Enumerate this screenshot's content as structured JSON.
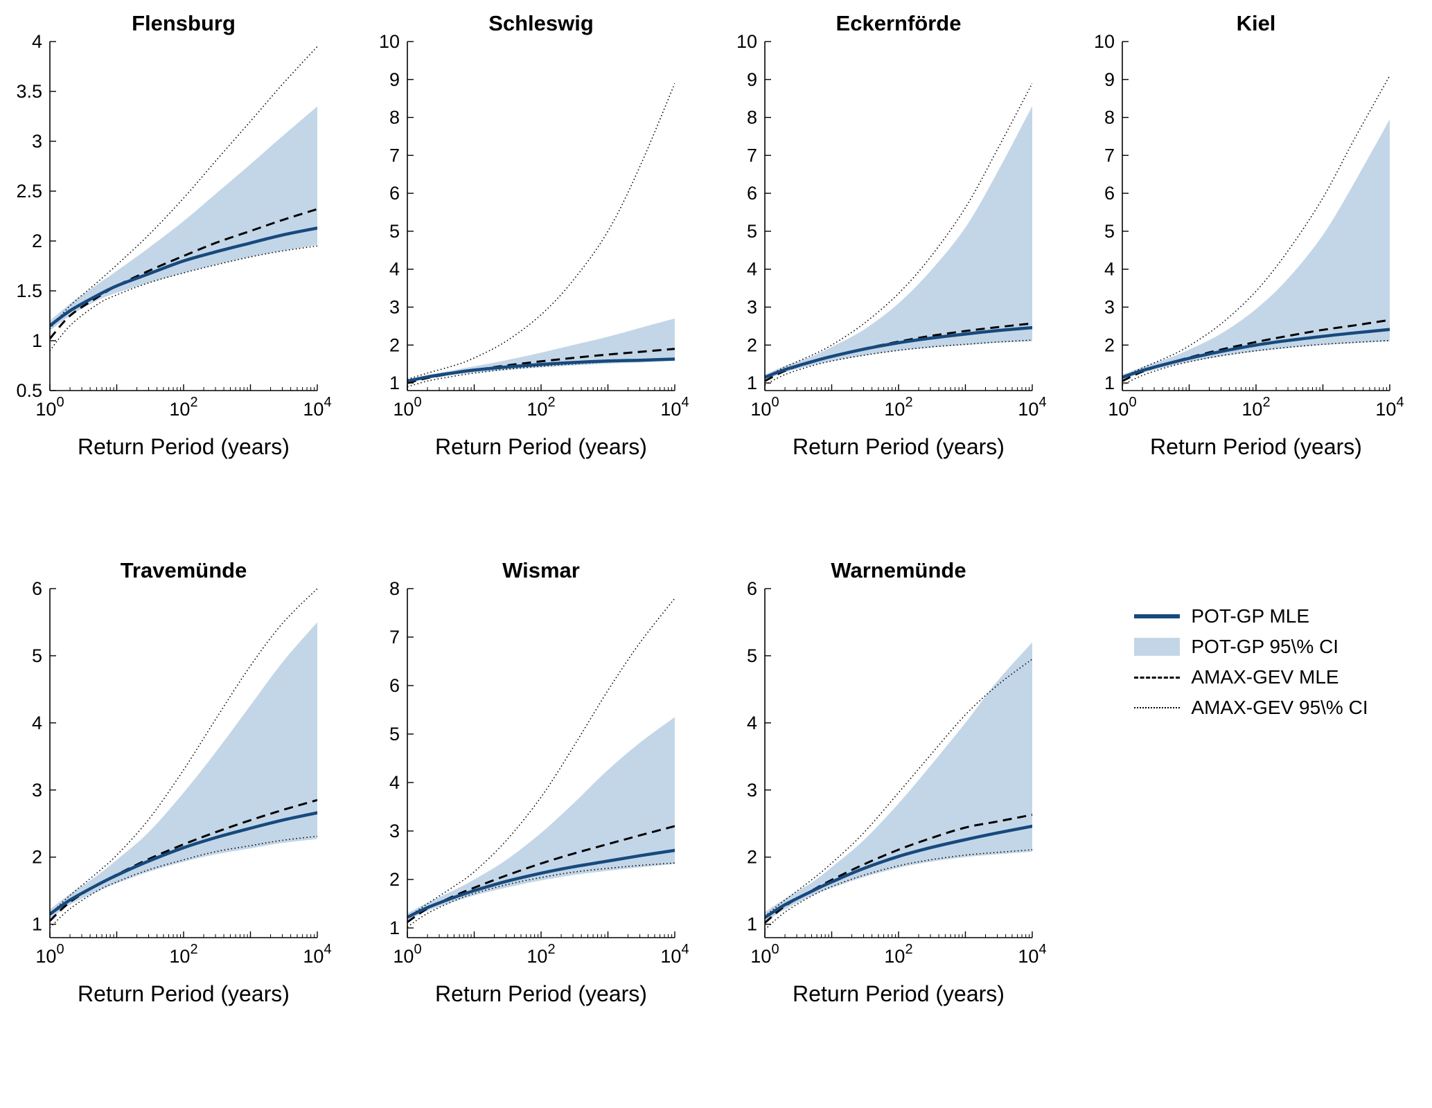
{
  "figure": {
    "xlabel": "Return Period (years)",
    "x_tick_labels": [
      "10^0",
      "10^2",
      "10^4"
    ],
    "colors": {
      "pot_line": "#17497c",
      "pot_ci_fill": "#c3d6e8",
      "amax_line": "#000000",
      "background": "#ffffff"
    },
    "legend": [
      {
        "label": "POT-GP MLE",
        "style": "solid-blue-line"
      },
      {
        "label": "POT-GP 95\\% CI",
        "style": "filled-band"
      },
      {
        "label": "AMAX-GEV MLE",
        "style": "dashed-black-line"
      },
      {
        "label": "AMAX-GEV 95\\% CI",
        "style": "dotted-black-line"
      }
    ]
  },
  "chart_data": [
    {
      "type": "line",
      "title": "Flensburg",
      "xlabel": "Return Period (years)",
      "xscale": "log",
      "xlim": [
        1,
        10000
      ],
      "x_return_period_years": [
        1,
        2,
        5,
        10,
        30,
        100,
        300,
        1000,
        3000,
        10000
      ],
      "ylim": [
        0.5,
        4
      ],
      "yticks": [
        0.5,
        1,
        1.5,
        2,
        2.5,
        3,
        3.5,
        4
      ],
      "series": [
        {
          "key": "pot_mle",
          "name": "POT-GP MLE",
          "values": [
            1.15,
            1.3,
            1.45,
            1.55,
            1.67,
            1.8,
            1.89,
            1.98,
            2.06,
            2.13
          ]
        },
        {
          "key": "pot_ci_lower",
          "name": "POT-GP 95% CI lower",
          "values": [
            1.1,
            1.25,
            1.4,
            1.48,
            1.58,
            1.68,
            1.76,
            1.84,
            1.9,
            1.96
          ]
        },
        {
          "key": "pot_ci_upper",
          "name": "POT-GP 95% CI upper",
          "values": [
            1.2,
            1.37,
            1.56,
            1.7,
            1.93,
            2.2,
            2.47,
            2.77,
            3.05,
            3.35
          ]
        },
        {
          "key": "amax_mle",
          "name": "AMAX-GEV MLE",
          "values": [
            1.02,
            1.25,
            1.43,
            1.55,
            1.7,
            1.85,
            1.98,
            2.1,
            2.21,
            2.32
          ]
        },
        {
          "key": "amax_ci_lower",
          "name": "AMAX-GEV 95% CI lower",
          "values": [
            0.9,
            1.15,
            1.36,
            1.46,
            1.58,
            1.68,
            1.76,
            1.84,
            1.9,
            1.95
          ]
        },
        {
          "key": "amax_ci_upper",
          "name": "AMAX-GEV 95% CI upper",
          "values": [
            1.12,
            1.35,
            1.58,
            1.76,
            2.06,
            2.43,
            2.8,
            3.2,
            3.57,
            3.95
          ]
        }
      ]
    },
    {
      "type": "line",
      "title": "Schleswig",
      "xlabel": "Return Period (years)",
      "xscale": "log",
      "xlim": [
        1,
        10000
      ],
      "x_return_period_years": [
        1,
        2,
        5,
        10,
        30,
        100,
        300,
        1000,
        3000,
        10000
      ],
      "ylim": [
        0.8,
        10
      ],
      "yticks": [
        1,
        2,
        3,
        4,
        5,
        6,
        7,
        8,
        9,
        10
      ],
      "series": [
        {
          "key": "pot_mle",
          "name": "POT-GP MLE",
          "values": [
            1.05,
            1.16,
            1.27,
            1.34,
            1.42,
            1.49,
            1.54,
            1.58,
            1.6,
            1.63
          ]
        },
        {
          "key": "pot_ci_lower",
          "name": "POT-GP 95% CI lower",
          "values": [
            1.0,
            1.11,
            1.21,
            1.27,
            1.34,
            1.41,
            1.46,
            1.51,
            1.54,
            1.58
          ]
        },
        {
          "key": "pot_ci_upper",
          "name": "POT-GP 95% CI upper",
          "values": [
            1.09,
            1.21,
            1.34,
            1.44,
            1.6,
            1.8,
            2.0,
            2.22,
            2.45,
            2.7
          ]
        },
        {
          "key": "amax_mle",
          "name": "AMAX-GEV MLE",
          "values": [
            1.0,
            1.13,
            1.26,
            1.34,
            1.46,
            1.57,
            1.66,
            1.75,
            1.82,
            1.9
          ]
        },
        {
          "key": "amax_ci_lower",
          "name": "AMAX-GEV 95% CI lower",
          "values": [
            0.9,
            1.05,
            1.18,
            1.26,
            1.36,
            1.44,
            1.5,
            1.55,
            1.58,
            1.61
          ]
        },
        {
          "key": "amax_ci_upper",
          "name": "AMAX-GEV 95% CI upper",
          "values": [
            1.1,
            1.26,
            1.46,
            1.66,
            2.1,
            2.8,
            3.7,
            5.0,
            6.7,
            8.9
          ]
        }
      ]
    },
    {
      "type": "line",
      "title": "Eckernförde",
      "xlabel": "Return Period (years)",
      "xscale": "log",
      "xlim": [
        1,
        10000
      ],
      "x_return_period_years": [
        1,
        2,
        5,
        10,
        30,
        100,
        300,
        1000,
        3000,
        10000
      ],
      "ylim": [
        0.8,
        10
      ],
      "yticks": [
        1,
        2,
        3,
        4,
        5,
        6,
        7,
        8,
        9,
        10
      ],
      "series": [
        {
          "key": "pot_mle",
          "name": "POT-GP MLE",
          "values": [
            1.15,
            1.35,
            1.56,
            1.7,
            1.89,
            2.06,
            2.18,
            2.29,
            2.38,
            2.46
          ]
        },
        {
          "key": "pot_ci_lower",
          "name": "POT-GP 95% CI lower",
          "values": [
            1.08,
            1.28,
            1.46,
            1.57,
            1.72,
            1.85,
            1.93,
            2.0,
            2.06,
            2.1
          ]
        },
        {
          "key": "pot_ci_upper",
          "name": "POT-GP 95% CI upper",
          "values": [
            1.22,
            1.45,
            1.7,
            1.95,
            2.4,
            3.1,
            3.95,
            5.1,
            6.55,
            8.3
          ]
        },
        {
          "key": "amax_mle",
          "name": "AMAX-GEV MLE",
          "values": [
            1.05,
            1.32,
            1.55,
            1.7,
            1.9,
            2.09,
            2.24,
            2.37,
            2.47,
            2.57
          ]
        },
        {
          "key": "amax_ci_lower",
          "name": "AMAX-GEV 95% CI lower",
          "values": [
            0.95,
            1.22,
            1.45,
            1.58,
            1.73,
            1.86,
            1.95,
            2.02,
            2.08,
            2.13
          ]
        },
        {
          "key": "amax_ci_upper",
          "name": "AMAX-GEV 95% CI upper",
          "values": [
            1.15,
            1.42,
            1.73,
            2.0,
            2.56,
            3.36,
            4.32,
            5.62,
            7.15,
            8.9
          ]
        }
      ]
    },
    {
      "type": "line",
      "title": "Kiel",
      "xlabel": "Return Period (years)",
      "xscale": "log",
      "xlim": [
        1,
        10000
      ],
      "x_return_period_years": [
        1,
        2,
        5,
        10,
        30,
        100,
        300,
        1000,
        3000,
        10000
      ],
      "ylim": [
        0.8,
        10
      ],
      "yticks": [
        1,
        2,
        3,
        4,
        5,
        6,
        7,
        8,
        9,
        10
      ],
      "series": [
        {
          "key": "pot_mle",
          "name": "POT-GP MLE",
          "values": [
            1.15,
            1.33,
            1.52,
            1.65,
            1.83,
            2.0,
            2.12,
            2.23,
            2.32,
            2.41
          ]
        },
        {
          "key": "pot_ci_lower",
          "name": "POT-GP 95% CI lower",
          "values": [
            1.08,
            1.26,
            1.44,
            1.55,
            1.7,
            1.83,
            1.92,
            2.0,
            2.05,
            2.1
          ]
        },
        {
          "key": "pot_ci_upper",
          "name": "POT-GP 95% CI upper",
          "values": [
            1.22,
            1.42,
            1.66,
            1.88,
            2.3,
            2.95,
            3.75,
            4.9,
            6.3,
            7.95
          ]
        },
        {
          "key": "amax_mle",
          "name": "AMAX-GEV MLE",
          "values": [
            1.05,
            1.3,
            1.52,
            1.67,
            1.88,
            2.08,
            2.24,
            2.4,
            2.52,
            2.66
          ]
        },
        {
          "key": "amax_ci_lower",
          "name": "AMAX-GEV 95% CI lower",
          "values": [
            0.95,
            1.2,
            1.43,
            1.56,
            1.72,
            1.85,
            1.94,
            2.02,
            2.07,
            2.12
          ]
        },
        {
          "key": "amax_ci_upper",
          "name": "AMAX-GEV 95% CI upper",
          "values": [
            1.15,
            1.4,
            1.7,
            1.98,
            2.56,
            3.42,
            4.48,
            5.88,
            7.45,
            9.1
          ]
        }
      ]
    },
    {
      "type": "line",
      "title": "Travemünde",
      "xlabel": "Return Period (years)",
      "xscale": "log",
      "xlim": [
        1,
        10000
      ],
      "x_return_period_years": [
        1,
        2,
        5,
        10,
        30,
        100,
        300,
        1000,
        3000,
        10000
      ],
      "ylim": [
        0.8,
        6
      ],
      "yticks": [
        1,
        2,
        3,
        4,
        5,
        6
      ],
      "series": [
        {
          "key": "pot_mle",
          "name": "POT-GP MLE",
          "values": [
            1.15,
            1.36,
            1.58,
            1.73,
            1.94,
            2.14,
            2.29,
            2.43,
            2.55,
            2.66
          ]
        },
        {
          "key": "pot_ci_lower",
          "name": "POT-GP 95% CI lower",
          "values": [
            1.08,
            1.29,
            1.48,
            1.61,
            1.78,
            1.93,
            2.04,
            2.13,
            2.21,
            2.27
          ]
        },
        {
          "key": "pot_ci_upper",
          "name": "POT-GP 95% CI upper",
          "values": [
            1.22,
            1.45,
            1.72,
            1.96,
            2.37,
            2.96,
            3.56,
            4.26,
            4.9,
            5.5
          ]
        },
        {
          "key": "amax_mle",
          "name": "AMAX-GEV MLE",
          "values": [
            1.05,
            1.33,
            1.58,
            1.74,
            1.97,
            2.19,
            2.37,
            2.55,
            2.7,
            2.85
          ]
        },
        {
          "key": "amax_ci_lower",
          "name": "AMAX-GEV 95% CI lower",
          "values": [
            0.95,
            1.23,
            1.49,
            1.63,
            1.81,
            1.96,
            2.08,
            2.17,
            2.25,
            2.31
          ]
        },
        {
          "key": "amax_ci_upper",
          "name": "AMAX-GEV 95% CI upper",
          "values": [
            1.15,
            1.43,
            1.76,
            2.03,
            2.56,
            3.3,
            4.05,
            4.85,
            5.48,
            6.0
          ]
        }
      ]
    },
    {
      "type": "line",
      "title": "Wismar",
      "xlabel": "Return Period (years)",
      "xscale": "log",
      "xlim": [
        1,
        10000
      ],
      "x_return_period_years": [
        1,
        2,
        5,
        10,
        30,
        100,
        300,
        1000,
        3000,
        10000
      ],
      "ylim": [
        0.8,
        8
      ],
      "yticks": [
        1,
        2,
        3,
        4,
        5,
        6,
        7,
        8
      ],
      "series": [
        {
          "key": "pot_mle",
          "name": "POT-GP MLE",
          "values": [
            1.22,
            1.42,
            1.63,
            1.77,
            1.96,
            2.13,
            2.26,
            2.38,
            2.49,
            2.6
          ]
        },
        {
          "key": "pot_ci_lower",
          "name": "POT-GP 95% CI lower",
          "values": [
            1.15,
            1.35,
            1.54,
            1.67,
            1.83,
            1.98,
            2.09,
            2.18,
            2.25,
            2.32
          ]
        },
        {
          "key": "pot_ci_upper",
          "name": "POT-GP 95% CI upper",
          "values": [
            1.3,
            1.52,
            1.78,
            2.0,
            2.4,
            2.96,
            3.56,
            4.26,
            4.82,
            5.35
          ]
        },
        {
          "key": "amax_mle",
          "name": "AMAX-GEV MLE",
          "values": [
            1.12,
            1.4,
            1.66,
            1.83,
            2.08,
            2.33,
            2.53,
            2.73,
            2.91,
            3.1
          ]
        },
        {
          "key": "amax_ci_lower",
          "name": "AMAX-GEV 95% CI lower",
          "values": [
            1.02,
            1.3,
            1.56,
            1.71,
            1.89,
            2.04,
            2.15,
            2.23,
            2.29,
            2.34
          ]
        },
        {
          "key": "amax_ci_upper",
          "name": "AMAX-GEV 95% CI upper",
          "values": [
            1.22,
            1.5,
            1.86,
            2.16,
            2.8,
            3.7,
            4.72,
            5.9,
            6.88,
            7.8
          ]
        }
      ]
    },
    {
      "type": "line",
      "title": "Warnemünde",
      "xlabel": "Return Period (years)",
      "xscale": "log",
      "xlim": [
        1,
        10000
      ],
      "x_return_period_years": [
        1,
        2,
        5,
        10,
        30,
        100,
        300,
        1000,
        3000,
        10000
      ],
      "ylim": [
        0.8,
        6
      ],
      "yticks": [
        1,
        2,
        3,
        4,
        5,
        6
      ],
      "series": [
        {
          "key": "pot_mle",
          "name": "POT-GP MLE",
          "values": [
            1.1,
            1.29,
            1.49,
            1.63,
            1.83,
            2.01,
            2.14,
            2.26,
            2.36,
            2.46
          ]
        },
        {
          "key": "pot_ci_lower",
          "name": "POT-GP 95% CI lower",
          "values": [
            1.03,
            1.22,
            1.42,
            1.54,
            1.7,
            1.84,
            1.93,
            2.0,
            2.04,
            2.08
          ]
        },
        {
          "key": "pot_ci_upper",
          "name": "POT-GP 95% CI upper",
          "values": [
            1.18,
            1.38,
            1.62,
            1.85,
            2.25,
            2.8,
            3.36,
            4.0,
            4.62,
            5.2
          ]
        },
        {
          "key": "amax_mle",
          "name": "AMAX-GEV MLE",
          "values": [
            1.02,
            1.27,
            1.5,
            1.66,
            1.89,
            2.11,
            2.28,
            2.44,
            2.53,
            2.63
          ]
        },
        {
          "key": "amax_ci_lower",
          "name": "AMAX-GEV 95% CI lower",
          "values": [
            0.92,
            1.18,
            1.42,
            1.56,
            1.73,
            1.87,
            1.96,
            2.03,
            2.07,
            2.11
          ]
        },
        {
          "key": "amax_ci_upper",
          "name": "AMAX-GEV 95% CI upper",
          "values": [
            1.12,
            1.36,
            1.66,
            1.91,
            2.36,
            2.96,
            3.52,
            4.12,
            4.56,
            4.95
          ]
        }
      ]
    }
  ]
}
